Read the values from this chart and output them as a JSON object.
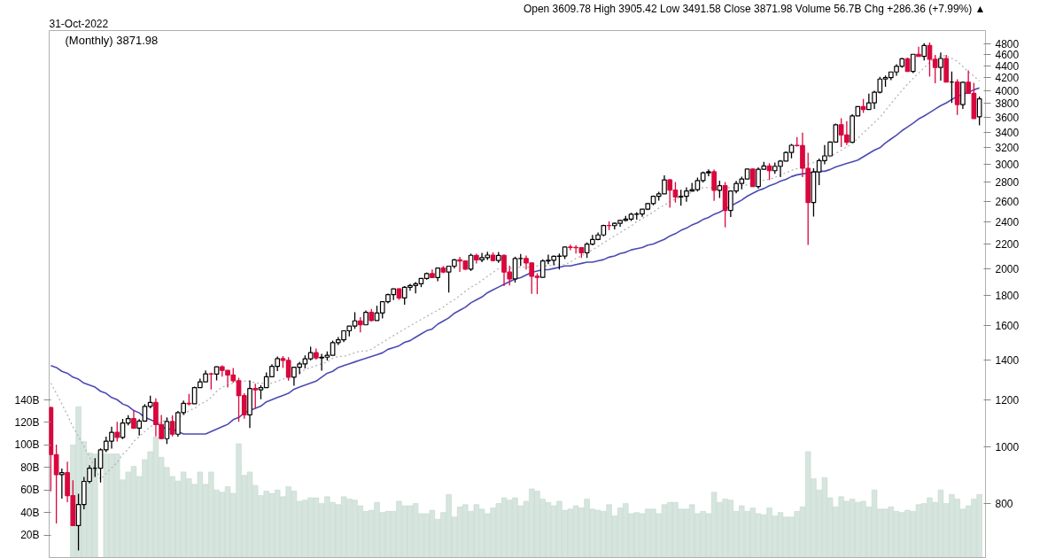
{
  "chart_data": {
    "type": "candlestick",
    "title": "(Monthly) 3871.98",
    "annotations": [
      "31-Oct-2022",
      "Open 3609.78 High 3905.42 Low 3491.58 Close 3871.98 Volume 56.7B Chg +286.36 (+7.99%) ▲"
    ],
    "categories": [
      null,
      null,
      null,
      null,
      null,
      null,
      null,
      null,
      null,
      null,
      null,
      null,
      null,
      null,
      null,
      null,
      null,
      null,
      null,
      null,
      null,
      null,
      null,
      null,
      null,
      null,
      null,
      null,
      null,
      null,
      null,
      null,
      null,
      null,
      null,
      null,
      null,
      null,
      null,
      null,
      null,
      null,
      null,
      null,
      null,
      null,
      null,
      null,
      null,
      null,
      null,
      null,
      null,
      null,
      null,
      null,
      null,
      null,
      null,
      null,
      null,
      null,
      null,
      null,
      null,
      null,
      null,
      null,
      null,
      null,
      null,
      null,
      null,
      null,
      null,
      null,
      null,
      null,
      null,
      null,
      null,
      null,
      null,
      null,
      null,
      null,
      null,
      null,
      null,
      null,
      null,
      null,
      null,
      null,
      null,
      null,
      null,
      null,
      null,
      null,
      null,
      null,
      null,
      null,
      null,
      null,
      null,
      null,
      null,
      null,
      null,
      null,
      null,
      null,
      null,
      null,
      null,
      null,
      null,
      null,
      null,
      null,
      null,
      null,
      null,
      null,
      null,
      null,
      null,
      null,
      null,
      null,
      null,
      null,
      null,
      null,
      null,
      null,
      null,
      null,
      null,
      null,
      null,
      null,
      null,
      null,
      null,
      null,
      null,
      null,
      null,
      null,
      null,
      null,
      null,
      null,
      null,
      null,
      null,
      null,
      null,
      null,
      null,
      null,
      null,
      null,
      null,
      null,
      null
    ],
    "log": "y2",
    "y2lim": [
      649,
      5050
    ],
    "y2ticks": [
      800,
      1000,
      1200,
      1400,
      1600,
      1800,
      2000,
      2200,
      2400,
      2600,
      2800,
      3000,
      3200,
      3400,
      3600,
      3800,
      4000,
      4200,
      4400,
      4600,
      4800
    ],
    "ylim": [
      0,
      468
    ],
    "yticks": [
      {
        "value": 20,
        "label": "20B"
      },
      {
        "value": 40,
        "label": "40B"
      },
      {
        "value": 60,
        "label": "60B"
      },
      {
        "value": 80,
        "label": "80B"
      },
      {
        "value": 100,
        "label": "100B"
      },
      {
        "value": 120,
        "label": "120B"
      },
      {
        "value": 140,
        "label": "140B"
      }
    ],
    "series": [
      {
        "axis": "y2",
        "ohlc": [
          [
            1164,
            1167,
            840,
            969
          ],
          [
            969,
            1007,
            741,
            896
          ],
          [
            896,
            918,
            816,
            903
          ],
          [
            903,
            943,
            805,
            826
          ],
          [
            826,
            877,
            734,
            735
          ],
          [
            735,
            832,
            667,
            798
          ],
          [
            798,
            888,
            783,
            873
          ],
          [
            873,
            930,
            866,
            919
          ],
          [
            919,
            956,
            888,
            919
          ],
          [
            919,
            993,
            869,
            987
          ],
          [
            987,
            1039,
            978,
            1021
          ],
          [
            1021,
            1080,
            992,
            1057
          ],
          [
            1057,
            1101,
            1020,
            1036
          ],
          [
            1036,
            1113,
            1029,
            1096
          ],
          [
            1096,
            1130,
            1086,
            1115
          ],
          [
            1115,
            1150,
            1071,
            1074
          ],
          [
            1074,
            1112,
            1044,
            1104
          ],
          [
            1104,
            1180,
            1101,
            1169
          ],
          [
            1169,
            1219,
            1160,
            1187
          ],
          [
            1187,
            1206,
            1040,
            1089
          ],
          [
            1089,
            1131,
            1028,
            1031
          ],
          [
            1031,
            1120,
            1010,
            1102
          ],
          [
            1102,
            1129,
            1040,
            1049
          ],
          [
            1049,
            1148,
            1039,
            1141
          ],
          [
            1141,
            1196,
            1131,
            1183
          ],
          [
            1183,
            1227,
            1173,
            1181
          ],
          [
            1181,
            1263,
            1181,
            1258
          ],
          [
            1258,
            1302,
            1257,
            1286
          ],
          [
            1286,
            1345,
            1286,
            1327
          ],
          [
            1327,
            1333,
            1249,
            1326
          ],
          [
            1326,
            1366,
            1294,
            1364
          ],
          [
            1364,
            1371,
            1312,
            1345
          ],
          [
            1345,
            1346,
            1258,
            1321
          ],
          [
            1321,
            1357,
            1282,
            1292
          ],
          [
            1292,
            1307,
            1101,
            1219
          ],
          [
            1219,
            1230,
            1114,
            1131
          ],
          [
            1131,
            1293,
            1075,
            1253
          ],
          [
            1253,
            1277,
            1159,
            1247
          ],
          [
            1247,
            1270,
            1202,
            1258
          ],
          [
            1258,
            1334,
            1258,
            1312
          ],
          [
            1312,
            1378,
            1312,
            1366
          ],
          [
            1366,
            1420,
            1341,
            1408
          ],
          [
            1408,
            1422,
            1358,
            1398
          ],
          [
            1398,
            1416,
            1292,
            1310
          ],
          [
            1310,
            1363,
            1267,
            1362
          ],
          [
            1362,
            1391,
            1325,
            1379
          ],
          [
            1379,
            1426,
            1355,
            1407
          ],
          [
            1407,
            1475,
            1398,
            1441
          ],
          [
            1441,
            1465,
            1403,
            1412
          ],
          [
            1412,
            1434,
            1344,
            1416
          ],
          [
            1416,
            1448,
            1398,
            1426
          ],
          [
            1426,
            1510,
            1426,
            1498
          ],
          [
            1498,
            1531,
            1485,
            1515
          ],
          [
            1515,
            1570,
            1502,
            1569
          ],
          [
            1569,
            1598,
            1536,
            1598
          ],
          [
            1598,
            1687,
            1581,
            1631
          ],
          [
            1631,
            1655,
            1560,
            1606
          ],
          [
            1606,
            1698,
            1605,
            1686
          ],
          [
            1686,
            1709,
            1627,
            1633
          ],
          [
            1633,
            1730,
            1633,
            1682
          ],
          [
            1682,
            1760,
            1646,
            1757
          ],
          [
            1757,
            1814,
            1746,
            1806
          ],
          [
            1806,
            1850,
            1768,
            1848
          ],
          [
            1848,
            1851,
            1770,
            1783
          ],
          [
            1783,
            1868,
            1737,
            1859
          ],
          [
            1859,
            1884,
            1834,
            1872
          ],
          [
            1872,
            1897,
            1815,
            1884
          ],
          [
            1884,
            1925,
            1860,
            1924
          ],
          [
            1924,
            1968,
            1915,
            1960
          ],
          [
            1960,
            1992,
            1930,
            1931
          ],
          [
            1931,
            2005,
            1904,
            2003
          ],
          [
            2003,
            2019,
            1964,
            1972
          ],
          [
            1972,
            2019,
            1821,
            2018
          ],
          [
            2018,
            2075,
            2001,
            2068
          ],
          [
            2068,
            2093,
            1973,
            2059
          ],
          [
            2059,
            2064,
            1988,
            1995
          ],
          [
            1995,
            2119,
            1981,
            2105
          ],
          [
            2105,
            2117,
            2039,
            2068
          ],
          [
            2068,
            2126,
            2049,
            2086
          ],
          [
            2086,
            2135,
            2067,
            2107
          ],
          [
            2107,
            2130,
            2056,
            2063
          ],
          [
            2063,
            2132,
            2044,
            2104
          ],
          [
            2104,
            2113,
            1867,
            1972
          ],
          [
            1972,
            2021,
            1872,
            1920
          ],
          [
            1920,
            2094,
            1893,
            2079
          ],
          [
            2079,
            2116,
            2019,
            2080
          ],
          [
            2080,
            2104,
            1993,
            2044
          ],
          [
            2044,
            2044,
            1812,
            1940
          ],
          [
            1940,
            1963,
            1810,
            1932
          ],
          [
            1932,
            2073,
            1932,
            2060
          ],
          [
            2060,
            2111,
            2034,
            2065
          ],
          [
            2065,
            2103,
            2025,
            2097
          ],
          [
            2097,
            2120,
            1992,
            2099
          ],
          [
            2099,
            2178,
            2075,
            2174
          ],
          [
            2174,
            2194,
            2148,
            2171
          ],
          [
            2171,
            2188,
            2120,
            2168
          ],
          [
            2168,
            2169,
            2084,
            2126
          ],
          [
            2126,
            2214,
            2084,
            2199
          ],
          [
            2199,
            2278,
            2188,
            2239
          ],
          [
            2239,
            2301,
            2233,
            2279
          ],
          [
            2279,
            2371,
            2267,
            2364
          ],
          [
            2364,
            2401,
            2322,
            2363
          ],
          [
            2363,
            2392,
            2329,
            2384
          ],
          [
            2384,
            2418,
            2353,
            2412
          ],
          [
            2412,
            2454,
            2405,
            2423
          ],
          [
            2423,
            2484,
            2407,
            2470
          ],
          [
            2470,
            2491,
            2418,
            2472
          ],
          [
            2472,
            2520,
            2446,
            2519
          ],
          [
            2519,
            2582,
            2510,
            2575
          ],
          [
            2575,
            2657,
            2557,
            2648
          ],
          [
            2648,
            2695,
            2605,
            2674
          ],
          [
            2674,
            2873,
            2674,
            2824
          ],
          [
            2824,
            2835,
            2533,
            2714
          ],
          [
            2714,
            2801,
            2585,
            2641
          ],
          [
            2641,
            2718,
            2553,
            2648
          ],
          [
            2648,
            2742,
            2594,
            2705
          ],
          [
            2705,
            2791,
            2698,
            2718
          ],
          [
            2718,
            2848,
            2699,
            2816
          ],
          [
            2816,
            2917,
            2796,
            2902
          ],
          [
            2902,
            2941,
            2864,
            2914
          ],
          [
            2914,
            2940,
            2603,
            2712
          ],
          [
            2712,
            2815,
            2631,
            2760
          ],
          [
            2760,
            2800,
            2347,
            2507
          ],
          [
            2507,
            2708,
            2443,
            2704
          ],
          [
            2704,
            2813,
            2681,
            2784
          ],
          [
            2784,
            2860,
            2722,
            2834
          ],
          [
            2834,
            2949,
            2834,
            2946
          ],
          [
            2946,
            2955,
            2750,
            2752
          ],
          [
            2752,
            2964,
            2729,
            2942
          ],
          [
            2942,
            3028,
            2942,
            2980
          ],
          [
            2980,
            3014,
            2822,
            2926
          ],
          [
            2926,
            3022,
            2892,
            2977
          ],
          [
            2977,
            3050,
            2855,
            3038
          ],
          [
            3038,
            3154,
            3038,
            3141
          ],
          [
            3141,
            3248,
            3070,
            3231
          ],
          [
            3231,
            3337,
            3215,
            3226
          ],
          [
            3226,
            3394,
            2855,
            2954
          ],
          [
            2954,
            3137,
            2192,
            2585
          ],
          [
            2585,
            2954,
            2447,
            2912
          ],
          [
            2912,
            3068,
            2766,
            3044
          ],
          [
            3044,
            3233,
            2999,
            3100
          ],
          [
            3100,
            3280,
            3100,
            3271
          ],
          [
            3271,
            3515,
            3271,
            3500
          ],
          [
            3500,
            3588,
            3209,
            3363
          ],
          [
            3363,
            3550,
            3233,
            3270
          ],
          [
            3270,
            3646,
            3270,
            3622
          ],
          [
            3622,
            3760,
            3622,
            3756
          ],
          [
            3756,
            3870,
            3663,
            3714
          ],
          [
            3714,
            3950,
            3714,
            3811
          ],
          [
            3811,
            3995,
            3723,
            3973
          ],
          [
            3973,
            4218,
            3955,
            4181
          ],
          [
            4181,
            4238,
            4056,
            4204
          ],
          [
            4204,
            4302,
            4165,
            4298
          ],
          [
            4298,
            4429,
            4234,
            4395
          ],
          [
            4395,
            4537,
            4368,
            4523
          ],
          [
            4523,
            4546,
            4306,
            4308
          ],
          [
            4308,
            4608,
            4278,
            4605
          ],
          [
            4605,
            4743,
            4560,
            4567
          ],
          [
            4567,
            4808,
            4495,
            4766
          ],
          [
            4766,
            4819,
            4222,
            4516
          ],
          [
            4516,
            4595,
            4115,
            4374
          ],
          [
            4374,
            4637,
            4157,
            4530
          ],
          [
            4530,
            4594,
            4129,
            4132
          ],
          [
            4132,
            4307,
            3811,
            4132
          ],
          [
            4132,
            4178,
            3637,
            3785
          ],
          [
            3785,
            4140,
            3721,
            4130
          ],
          [
            4130,
            4325,
            3955,
            3955
          ],
          [
            3955,
            4120,
            3584,
            3586
          ],
          [
            3609.78,
            3905.42,
            3491.58,
            3871.98
          ]
        ],
        "colors": [
          "#d9073d",
          "#d9073d",
          "#000000",
          "#d9073d",
          "#d9073d",
          "#000000",
          "#000000",
          "#000000",
          "#000000",
          "#000000",
          "#000000",
          "#000000",
          "#d9073d",
          "#000000",
          "#000000",
          "#d9073d",
          "#000000",
          "#000000",
          "#000000",
          "#d9073d",
          "#d9073d",
          "#000000",
          "#d9073d",
          "#000000",
          "#000000",
          "#d9073d",
          "#000000",
          "#000000",
          "#000000",
          "#d9073d",
          "#000000",
          "#d9073d",
          "#d9073d",
          "#d9073d",
          "#d9073d",
          "#d9073d",
          "#000000",
          "#d9073d",
          "#000000",
          "#000000",
          "#000000",
          "#000000",
          "#d9073d",
          "#d9073d",
          "#000000",
          "#000000",
          "#000000",
          "#000000",
          "#d9073d",
          "#000000",
          "#000000",
          "#000000",
          "#000000",
          "#000000",
          "#000000",
          "#000000",
          "#d9073d",
          "#000000",
          "#d9073d",
          "#000000",
          "#000000",
          "#000000",
          "#000000",
          "#d9073d",
          "#000000",
          "#000000",
          "#000000",
          "#000000",
          "#000000",
          "#d9073d",
          "#000000",
          "#d9073d",
          "#000000",
          "#000000",
          "#d9073d",
          "#d9073d",
          "#000000",
          "#d9073d",
          "#000000",
          "#000000",
          "#d9073d",
          "#000000",
          "#d9073d",
          "#d9073d",
          "#000000",
          "#000000",
          "#d9073d",
          "#d9073d",
          "#d9073d",
          "#000000",
          "#000000",
          "#000000",
          "#000000",
          "#000000",
          "#d9073d",
          "#d9073d",
          "#d9073d",
          "#000000",
          "#000000",
          "#000000",
          "#000000",
          "#d9073d",
          "#000000",
          "#000000",
          "#000000",
          "#000000",
          "#000000",
          "#000000",
          "#000000",
          "#000000",
          "#000000",
          "#000000",
          "#d9073d",
          "#d9073d",
          "#000000",
          "#000000",
          "#000000",
          "#000000",
          "#000000",
          "#000000",
          "#d9073d",
          "#000000",
          "#d9073d",
          "#000000",
          "#000000",
          "#000000",
          "#000000",
          "#d9073d",
          "#000000",
          "#000000",
          "#d9073d",
          "#000000",
          "#000000",
          "#000000",
          "#000000",
          "#d9073d",
          "#d9073d",
          "#d9073d",
          "#000000",
          "#000000",
          "#000000",
          "#000000",
          "#000000",
          "#d9073d",
          "#d9073d",
          "#000000",
          "#000000",
          "#d9073d",
          "#000000",
          "#000000",
          "#000000",
          "#000000",
          "#000000",
          "#000000",
          "#000000",
          "#d9073d",
          "#000000",
          "#d9073d",
          "#000000",
          "#d9073d",
          "#d9073d",
          "#000000",
          "#d9073d",
          "#000000",
          "#d9073d",
          "#000000",
          "#d9073d",
          "#d9073d",
          "#000000"
        ]
      },
      {
        "type": "bar",
        "color": "#d6e5de",
        "values": [
          null,
          null,
          null,
          null,
          100,
          134,
          103,
          93,
          92,
          null,
          92,
          92,
          92,
          69,
          76,
          81,
          72,
          87,
          94,
          107,
          89,
          80,
          72,
          68,
          76,
          70,
          65,
          76,
          65,
          76,
          60,
          58,
          63,
          57,
          101,
          73,
          76,
          64,
          55,
          59,
          57,
          60,
          54,
          63,
          59,
          50,
          51,
          53,
          53,
          48,
          54,
          49,
          47,
          54,
          52,
          51,
          46,
          41,
          42,
          49,
          40,
          41,
          41,
          50,
          46,
          46,
          48,
          39,
          39,
          42,
          34,
          40,
          56,
          36,
          45,
          47,
          41,
          47,
          43,
          39,
          44,
          48,
          53,
          51,
          53,
          46,
          50,
          61,
          59,
          52,
          49,
          46,
          50,
          42,
          43,
          46,
          44,
          52,
          43,
          42,
          41,
          47,
          37,
          44,
          48,
          39,
          40,
          39,
          43,
          43,
          39,
          47,
          49,
          49,
          43,
          43,
          47,
          39,
          41,
          39,
          58,
          49,
          52,
          51,
          41,
          46,
          41,
          44,
          39,
          38,
          44,
          37,
          40,
          36,
          36,
          41,
          45,
          94,
          70,
          60,
          71,
          53,
          45,
          54,
          50,
          52,
          49,
          50,
          45,
          60,
          43,
          43,
          45,
          41,
          40,
          42,
          41,
          47,
          48,
          53,
          49,
          60,
          48,
          56,
          52,
          43,
          46,
          52,
          56
        ]
      },
      {
        "type": "line",
        "axis": "y2",
        "color": "#4b4bb4",
        "line_style": "solid",
        "values": [
          1370,
          1360,
          1340,
          1330,
          1310,
          1300,
          1280,
          1270,
          1260,
          1240,
          1230,
          1210,
          1200,
          1180,
          1170,
          1150,
          1140,
          1120,
          1110,
          1100,
          1080,
          1070,
          1070,
          1060,
          1050,
          1050,
          1050,
          1050,
          1050,
          1060,
          1070,
          1080,
          1090,
          1110,
          1120,
          1140,
          1150,
          1160,
          1170,
          1190,
          1200,
          1210,
          1220,
          1230,
          1250,
          1260,
          1270,
          1280,
          1290,
          1310,
          1330,
          1340,
          1360,
          1370,
          1380,
          1390,
          1400,
          1410,
          1420,
          1430,
          1440,
          1460,
          1470,
          1480,
          1500,
          1510,
          1530,
          1550,
          1570,
          1580,
          1610,
          1630,
          1650,
          1680,
          1700,
          1720,
          1750,
          1770,
          1790,
          1820,
          1840,
          1860,
          1880,
          1900,
          1920,
          1930,
          1950,
          1970,
          1980,
          1990,
          1990,
          2000,
          2010,
          2020,
          2020,
          2030,
          2040,
          2050,
          2050,
          2060,
          2070,
          2090,
          2100,
          2120,
          2130,
          2150,
          2160,
          2170,
          2190,
          2200,
          2220,
          2240,
          2270,
          2290,
          2320,
          2340,
          2370,
          2390,
          2420,
          2440,
          2470,
          2490,
          2520,
          2550,
          2580,
          2610,
          2650,
          2680,
          2710,
          2730,
          2760,
          2780,
          2810,
          2830,
          2860,
          2880,
          2890,
          2900,
          2910,
          2920,
          2920,
          2940,
          2970,
          2990,
          3010,
          3030,
          3050,
          3090,
          3130,
          3170,
          3200,
          3260,
          3310,
          3360,
          3420,
          3470,
          3520,
          3580,
          3620,
          3670,
          3720,
          3770,
          3810,
          3860,
          3910,
          3940,
          3970,
          4010,
          4040
        ]
      },
      {
        "type": "line",
        "axis": "y2",
        "color": "#b4b4b4",
        "line_style": "dotted",
        "values": [
          1280,
          1230,
          1180,
          1130,
          1080,
          1040,
          1000,
          960,
          920,
          880,
          900,
          920,
          940,
          970,
          990,
          1020,
          1040,
          1060,
          1080,
          1090,
          1100,
          1110,
          1120,
          1120,
          1130,
          1150,
          1160,
          1180,
          1190,
          1210,
          1240,
          1260,
          1270,
          1280,
          1290,
          1290,
          1290,
          1280,
          1280,
          1280,
          1280,
          1290,
          1300,
          1310,
          1320,
          1330,
          1350,
          1360,
          1370,
          1380,
          1390,
          1410,
          1420,
          1420,
          1430,
          1440,
          1450,
          1450,
          1460,
          1480,
          1500,
          1520,
          1540,
          1560,
          1580,
          1600,
          1620,
          1640,
          1660,
          1680,
          1700,
          1720,
          1750,
          1770,
          1800,
          1830,
          1860,
          1880,
          1910,
          1940,
          1970,
          2000,
          2000,
          2000,
          2010,
          2010,
          2010,
          2010,
          2020,
          2020,
          2020,
          2030,
          2030,
          2030,
          2050,
          2080,
          2100,
          2130,
          2150,
          2180,
          2210,
          2240,
          2270,
          2300,
          2330,
          2360,
          2400,
          2430,
          2460,
          2490,
          2530,
          2560,
          2590,
          2620,
          2640,
          2670,
          2690,
          2720,
          2740,
          2740,
          2740,
          2740,
          2740,
          2740,
          2740,
          2760,
          2770,
          2790,
          2800,
          2820,
          2830,
          2850,
          2880,
          2900,
          2930,
          2950,
          2980,
          3000,
          3020,
          3030,
          3050,
          3090,
          3130,
          3170,
          3210,
          3250,
          3320,
          3390,
          3460,
          3530,
          3600,
          3700,
          3800,
          3900,
          4000,
          4100,
          4190,
          4280,
          4370,
          4460,
          4550,
          4570,
          4580,
          4530,
          4480,
          4390,
          4300,
          4230,
          4150
        ]
      }
    ],
    "grid": false
  }
}
